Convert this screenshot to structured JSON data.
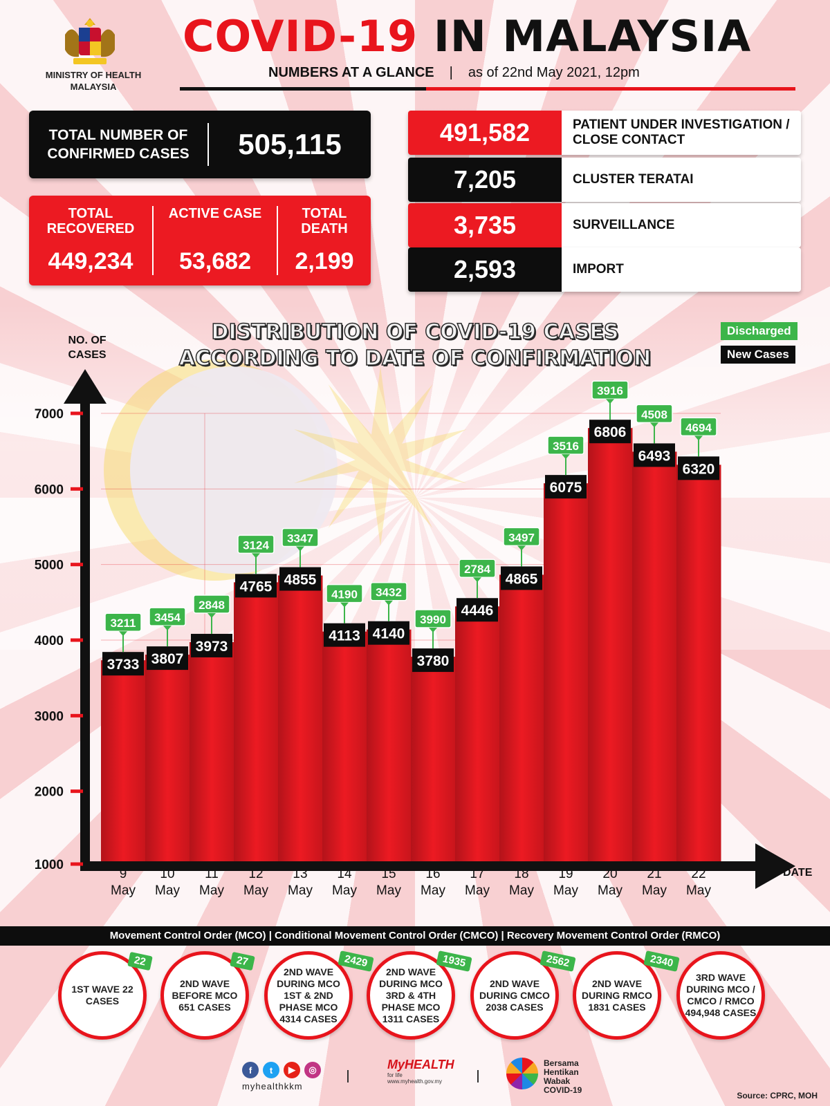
{
  "header": {
    "ministry": "MINISTRY OF HEALTH MALAYSIA",
    "title_red": "COVID-19",
    "title_black": "IN MALAYSIA",
    "subtitle_bold": "NUMBERS AT A GLANCE",
    "subtitle_sep": "|",
    "subtitle_date": "as of 22nd May 2021, 12pm"
  },
  "confirmed": {
    "label": "TOTAL NUMBER OF CONFIRMED CASES",
    "value": "505,115"
  },
  "totals": [
    {
      "label": "TOTAL RECOVERED",
      "value": "449,234"
    },
    {
      "label": "ACTIVE CASE",
      "value": "53,682"
    },
    {
      "label": "TOTAL DEATH",
      "value": "2,199"
    }
  ],
  "sources": [
    {
      "value": "491,582",
      "label": "PATIENT UNDER INVESTIGATION / CLOSE CONTACT",
      "color": "#ec1a22"
    },
    {
      "value": "7,205",
      "label": "CLUSTER TERATAI",
      "color": "#0d0d0d"
    },
    {
      "value": "3,735",
      "label": "SURVEILLANCE",
      "color": "#ec1a22"
    },
    {
      "value": "2,593",
      "label": "IMPORT",
      "color": "#0d0d0d"
    }
  ],
  "chart_data": {
    "type": "bar",
    "title": "DISTRIBUTION OF COVID-19 CASES ACCORDING TO DATE OF CONFIRMATION",
    "ylabel": "NO. OF CASES",
    "xlabel": "DATE",
    "ylim": [
      1000,
      7000
    ],
    "yticks": [
      1000,
      2000,
      3000,
      4000,
      5000,
      6000,
      7000
    ],
    "categories": [
      "9 May",
      "10 May",
      "11 May",
      "12 May",
      "13 May",
      "14 May",
      "15 May",
      "16 May",
      "17 May",
      "18 May",
      "19 May",
      "20 May",
      "21 May",
      "22 May"
    ],
    "series": [
      {
        "name": "New Cases",
        "color": "#0d0d0d",
        "values": [
          3733,
          3807,
          3973,
          4765,
          4855,
          4113,
          4140,
          3780,
          4446,
          4865,
          6075,
          6806,
          6493,
          6320
        ]
      },
      {
        "name": "Discharged",
        "color": "#3cb54a",
        "values": [
          3211,
          3454,
          2848,
          3124,
          3347,
          4190,
          3432,
          3990,
          2784,
          3497,
          3516,
          3916,
          4508,
          4694
        ]
      }
    ],
    "legend": "top-right",
    "bar_color": "#e8141c"
  },
  "mco": {
    "bar_text": "Movement Control Order (MCO) | Conditional Movement Control Order (CMCO) | Recovery Movement Control Order (RMCO)",
    "waves": [
      {
        "text": "1ST WAVE 22 CASES",
        "badge": "22"
      },
      {
        "text": "2ND WAVE BEFORE MCO 651 CASES",
        "badge": "27"
      },
      {
        "text": "2ND WAVE DURING MCO 1ST & 2ND PHASE MCO 4314 CASES",
        "badge": "2429"
      },
      {
        "text": "2ND WAVE DURING MCO 3RD & 4TH PHASE MCO 1311 CASES",
        "badge": "1935"
      },
      {
        "text": "2ND WAVE DURING CMCO 2038 CASES",
        "badge": "2562"
      },
      {
        "text": "2ND WAVE DURING RMCO 1831 CASES",
        "badge": "2340"
      },
      {
        "text": "3RD WAVE DURING MCO / CMCO / RMCO 494,948 CASES",
        "badge": ""
      }
    ]
  },
  "footer": {
    "handle": "myhealthkkm",
    "myhealth": "MyHEALTH",
    "myhealth_tag": "for life",
    "myhealth_url": "www.myhealth.gov.my",
    "bersama": [
      "Bersama",
      "Hentikan",
      "Wabak",
      "COVID-19"
    ],
    "source": "Source: CPRC, MOH",
    "separator": "|"
  }
}
